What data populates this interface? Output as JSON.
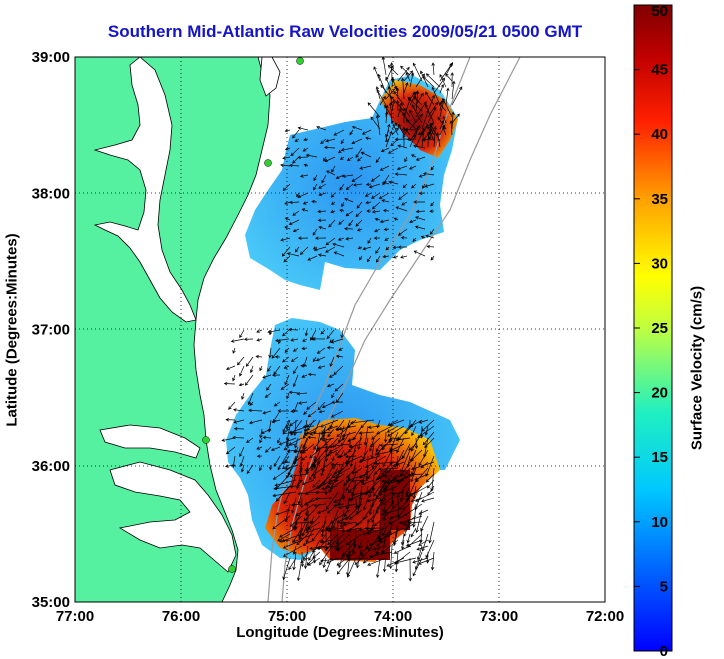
{
  "title": "Southern Mid-Atlantic Raw Velocities 2009/05/21 0500 GMT",
  "xlabel": "Longitude (Degrees:Minutes)",
  "ylabel": "Latitude (Degrees:Minutes)",
  "colorbar": {
    "label": "Surface Velocity (cm/s)",
    "ticks": [
      "0",
      "5",
      "10",
      "15",
      "20",
      "25",
      "30",
      "35",
      "40",
      "45",
      "50"
    ],
    "range": [
      0,
      50
    ],
    "colormap": "jet"
  },
  "map": {
    "lon_ticks": [
      "77:00",
      "76:00",
      "75:00",
      "74:00",
      "73:00",
      "72:00"
    ],
    "lat_ticks": [
      "39:00",
      "38:00",
      "37:00",
      "36:00",
      "35:00"
    ],
    "lon_range": [
      -77,
      -72
    ],
    "lat_range": [
      35,
      39
    ],
    "land_color": "#55f0a0",
    "velocity_max_color": "#800000",
    "grid": "dotted"
  }
}
